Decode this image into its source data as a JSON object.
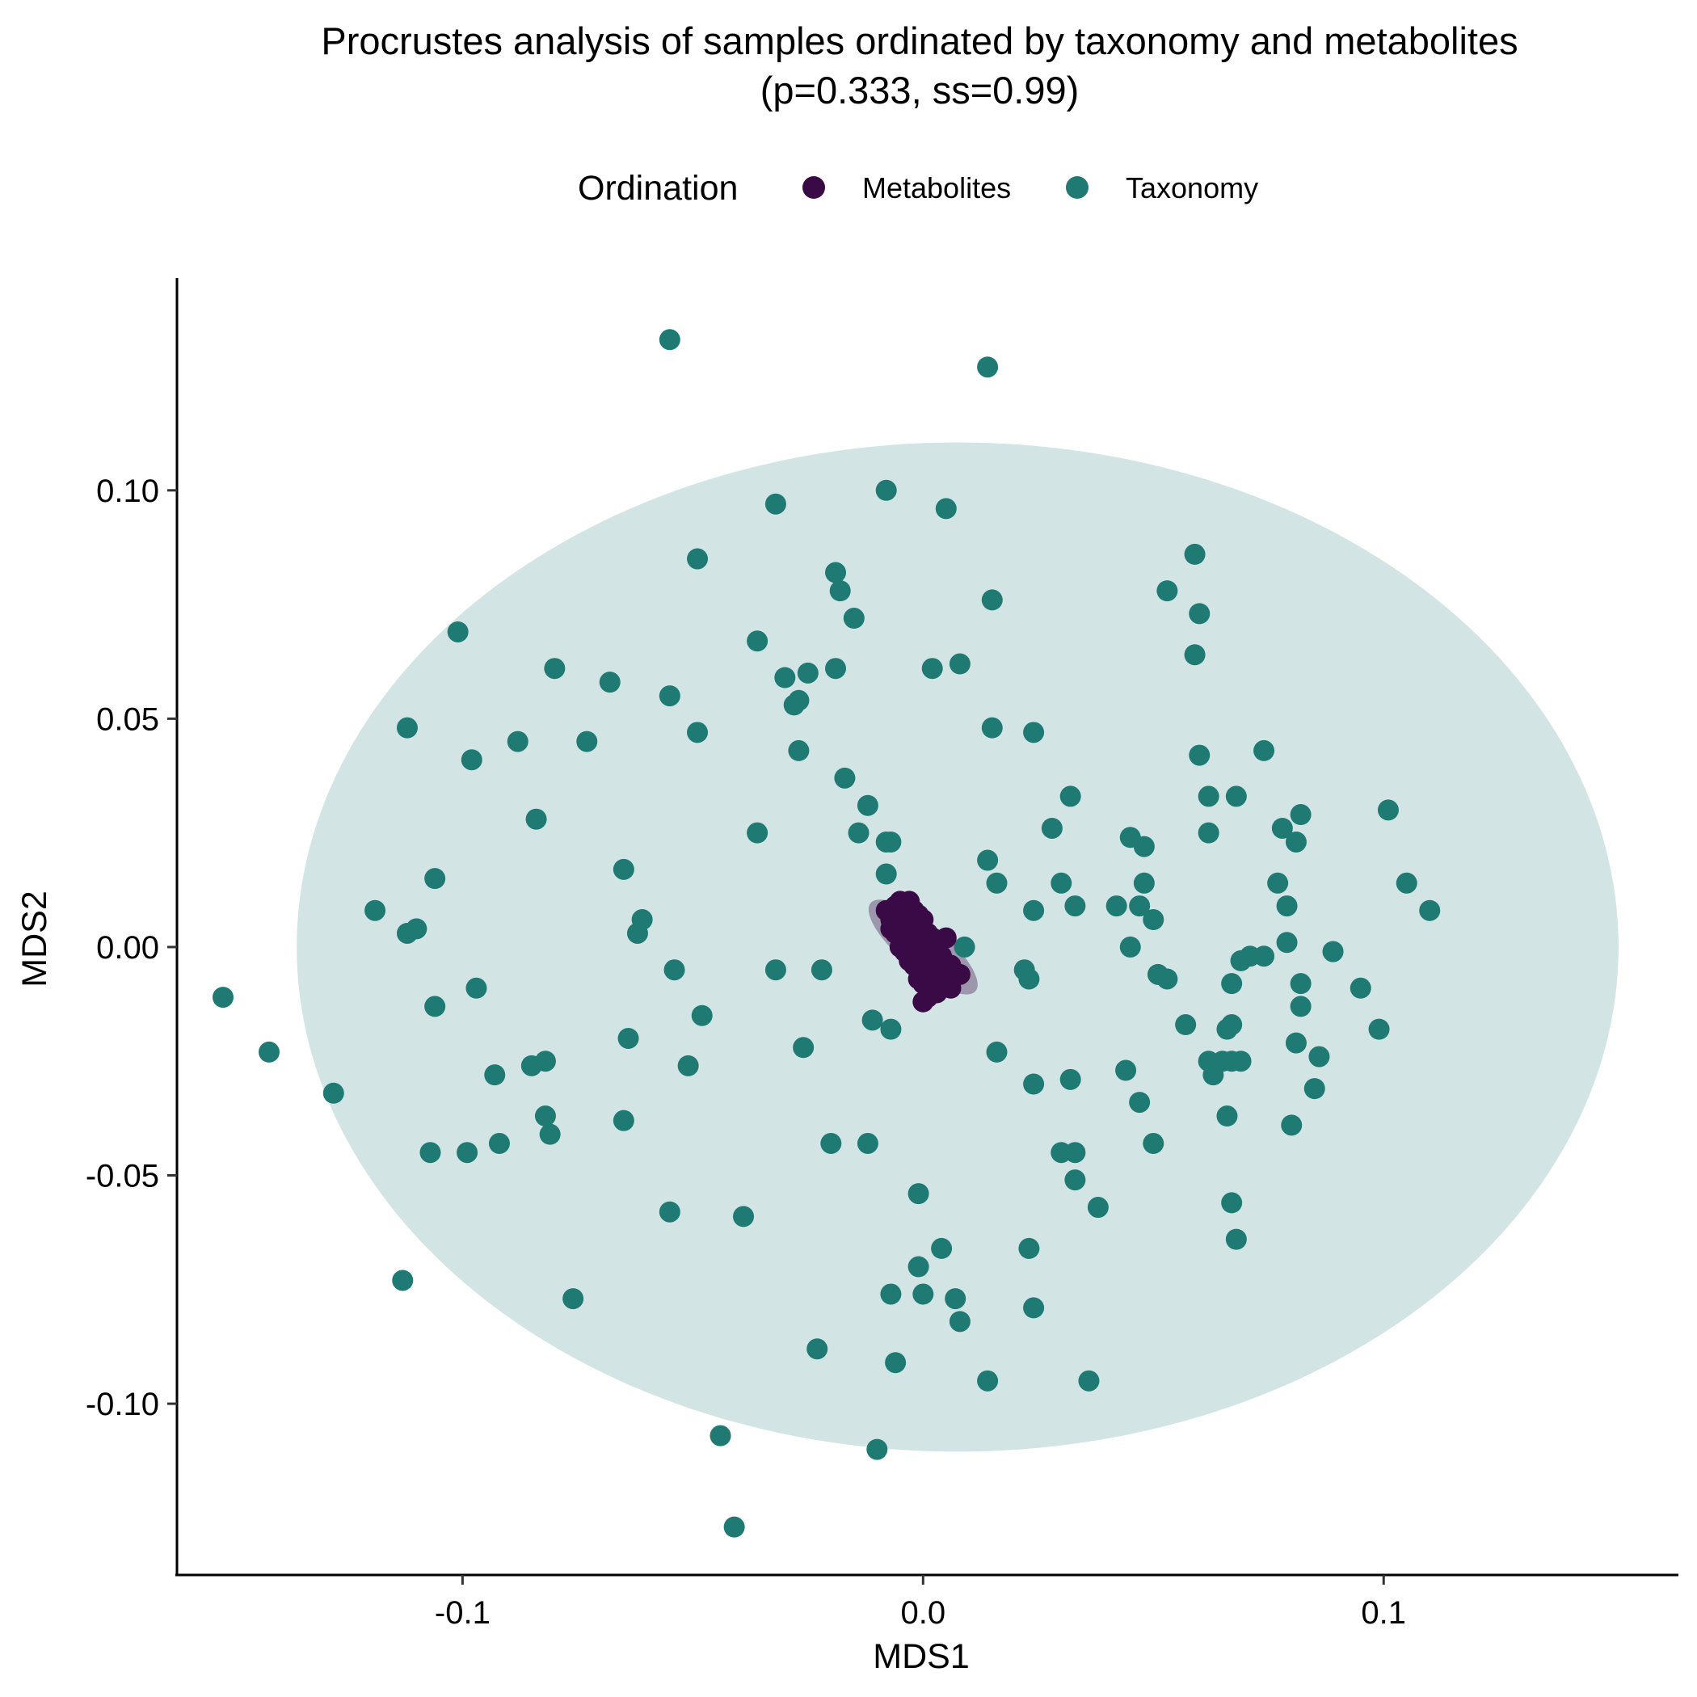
{
  "chart_data": {
    "type": "scatter",
    "title": "Procrustes analysis of samples ordinated by taxonomy and metabolites",
    "subtitle": "(p=0.333, ss=0.99)",
    "xlabel": "MDS1",
    "ylabel": "MDS2",
    "xlim": [
      -0.162,
      0.164
    ],
    "ylim": [
      -0.1375,
      0.1465
    ],
    "x_ticks": [
      -0.1,
      0.0,
      0.1
    ],
    "x_tick_labels": [
      "-0.1",
      "0.0",
      "0.1"
    ],
    "y_ticks": [
      0.1,
      0.05,
      0.0,
      -0.05,
      -0.1
    ],
    "y_tick_labels": [
      "0.10",
      "0.05",
      "0.00",
      "-0.05",
      "-0.10"
    ],
    "grid": false,
    "legend": {
      "title": "Ordination",
      "position": "top",
      "entries": [
        {
          "label": "Metabolites",
          "color": "#3A0A46"
        },
        {
          "label": "Taxonomy",
          "color": "#1F7A74"
        }
      ]
    },
    "ellipses": [
      {
        "series": "Taxonomy",
        "center": [
          0.0075,
          0.0
        ],
        "radius_x": 0.1435,
        "radius_y": 0.1105,
        "color": "#1F7A74",
        "opacity": 0.2
      },
      {
        "series": "Metabolites",
        "center": [
          0.0,
          0.0
        ],
        "radius_x": 0.005,
        "radius_y": 0.015,
        "rotation": -50,
        "color": "#3A0A46",
        "opacity": 0.35
      }
    ],
    "series": [
      {
        "name": "Taxonomy",
        "color": "#1F7A74",
        "points": [
          [
            -0.055,
            0.133
          ],
          [
            0.014,
            0.127
          ],
          [
            -0.032,
            0.097
          ],
          [
            -0.008,
            0.1
          ],
          [
            0.005,
            0.096
          ],
          [
            -0.049,
            0.085
          ],
          [
            -0.019,
            0.082
          ],
          [
            -0.018,
            0.078
          ],
          [
            0.015,
            0.076
          ],
          [
            -0.015,
            0.072
          ],
          [
            -0.101,
            0.069
          ],
          [
            -0.036,
            0.067
          ],
          [
            -0.08,
            0.061
          ],
          [
            -0.03,
            0.059
          ],
          [
            -0.025,
            0.06
          ],
          [
            -0.019,
            0.061
          ],
          [
            0.002,
            0.061
          ],
          [
            0.008,
            0.062
          ],
          [
            -0.068,
            0.058
          ],
          [
            -0.055,
            0.055
          ],
          [
            -0.028,
            0.053
          ],
          [
            -0.027,
            0.054
          ],
          [
            -0.112,
            0.048
          ],
          [
            -0.049,
            0.047
          ],
          [
            0.015,
            0.048
          ],
          [
            0.024,
            0.047
          ],
          [
            -0.088,
            0.045
          ],
          [
            -0.073,
            0.045
          ],
          [
            -0.027,
            0.043
          ],
          [
            -0.098,
            0.041
          ],
          [
            -0.017,
            0.037
          ],
          [
            -0.012,
            0.031
          ],
          [
            -0.084,
            0.028
          ],
          [
            -0.036,
            0.025
          ],
          [
            -0.014,
            0.025
          ],
          [
            -0.008,
            0.023
          ],
          [
            -0.007,
            0.023
          ],
          [
            0.014,
            0.019
          ],
          [
            -0.065,
            0.017
          ],
          [
            -0.106,
            0.015
          ],
          [
            -0.008,
            0.016
          ],
          [
            0.016,
            0.014
          ],
          [
            -0.119,
            0.008
          ],
          [
            -0.061,
            0.006
          ],
          [
            -0.112,
            0.003
          ],
          [
            -0.11,
            0.004
          ],
          [
            -0.062,
            0.003
          ],
          [
            0.024,
            0.008
          ],
          [
            0.009,
            0.0
          ],
          [
            -0.032,
            -0.005
          ],
          [
            -0.054,
            -0.005
          ],
          [
            -0.022,
            -0.005
          ],
          [
            -0.106,
            -0.013
          ],
          [
            -0.097,
            -0.009
          ],
          [
            -0.048,
            -0.015
          ],
          [
            -0.011,
            -0.016
          ],
          [
            -0.007,
            -0.018
          ],
          [
            -0.064,
            -0.02
          ],
          [
            -0.026,
            -0.022
          ],
          [
            -0.093,
            -0.028
          ],
          [
            -0.085,
            -0.026
          ],
          [
            -0.082,
            -0.025
          ],
          [
            -0.051,
            -0.026
          ],
          [
            -0.082,
            -0.037
          ],
          [
            -0.081,
            -0.041
          ],
          [
            -0.065,
            -0.038
          ],
          [
            -0.107,
            -0.045
          ],
          [
            -0.099,
            -0.045
          ],
          [
            -0.092,
            -0.043
          ],
          [
            -0.02,
            -0.043
          ],
          [
            -0.012,
            -0.043
          ],
          [
            -0.055,
            -0.058
          ],
          [
            -0.039,
            -0.059
          ],
          [
            -0.001,
            -0.054
          ],
          [
            -0.113,
            -0.073
          ],
          [
            -0.076,
            -0.077
          ],
          [
            0.004,
            -0.066
          ],
          [
            -0.001,
            -0.07
          ],
          [
            -0.007,
            -0.076
          ],
          [
            0.0,
            -0.076
          ],
          [
            0.007,
            -0.077
          ],
          [
            0.008,
            -0.082
          ],
          [
            -0.023,
            -0.088
          ],
          [
            -0.006,
            -0.091
          ],
          [
            0.014,
            -0.095
          ],
          [
            -0.044,
            -0.107
          ],
          [
            -0.01,
            -0.11
          ],
          [
            -0.041,
            -0.127
          ],
          [
            0.016,
            -0.023
          ],
          [
            0.022,
            -0.005
          ],
          [
            0.023,
            -0.007
          ],
          [
            0.024,
            -0.03
          ],
          [
            0.023,
            -0.066
          ],
          [
            0.024,
            -0.079
          ],
          [
            0.028,
            0.026
          ],
          [
            0.03,
            0.014
          ],
          [
            0.032,
            0.033
          ],
          [
            0.033,
            0.009
          ],
          [
            0.032,
            -0.029
          ],
          [
            0.03,
            -0.045
          ],
          [
            0.033,
            -0.045
          ],
          [
            0.033,
            -0.051
          ],
          [
            0.036,
            -0.095
          ],
          [
            0.038,
            -0.057
          ],
          [
            0.042,
            0.009
          ],
          [
            0.045,
            0.024
          ],
          [
            0.048,
            0.022
          ],
          [
            0.048,
            0.014
          ],
          [
            0.047,
            0.009
          ],
          [
            0.05,
            0.006
          ],
          [
            0.045,
            0.0
          ],
          [
            0.051,
            -0.006
          ],
          [
            0.053,
            -0.007
          ],
          [
            0.044,
            -0.027
          ],
          [
            0.047,
            -0.034
          ],
          [
            0.05,
            -0.043
          ],
          [
            0.057,
            -0.017
          ],
          [
            0.053,
            0.078
          ],
          [
            0.059,
            0.086
          ],
          [
            0.06,
            0.073
          ],
          [
            0.059,
            0.064
          ],
          [
            0.06,
            0.042
          ],
          [
            0.062,
            0.033
          ],
          [
            0.062,
            0.025
          ],
          [
            0.068,
            0.033
          ],
          [
            0.066,
            -0.037
          ],
          [
            0.067,
            -0.017
          ],
          [
            0.067,
            -0.008
          ],
          [
            0.069,
            -0.003
          ],
          [
            0.071,
            -0.002
          ],
          [
            0.074,
            -0.002
          ],
          [
            0.074,
            0.043
          ],
          [
            0.078,
            0.026
          ],
          [
            0.082,
            0.029
          ],
          [
            0.081,
            0.023
          ],
          [
            0.077,
            0.014
          ],
          [
            0.079,
            0.009
          ],
          [
            0.079,
            0.001
          ],
          [
            0.082,
            -0.008
          ],
          [
            0.082,
            -0.013
          ],
          [
            0.081,
            -0.021
          ],
          [
            0.066,
            -0.018
          ],
          [
            0.065,
            -0.025
          ],
          [
            0.062,
            -0.025
          ],
          [
            0.067,
            -0.025
          ],
          [
            0.069,
            -0.025
          ],
          [
            0.086,
            -0.024
          ],
          [
            0.085,
            -0.031
          ],
          [
            0.08,
            -0.039
          ],
          [
            0.067,
            -0.056
          ],
          [
            0.068,
            -0.064
          ],
          [
            0.089,
            -0.001
          ],
          [
            0.095,
            -0.009
          ],
          [
            0.099,
            -0.018
          ],
          [
            0.101,
            0.03
          ],
          [
            0.105,
            0.014
          ],
          [
            0.11,
            0.008
          ],
          [
            -0.152,
            -0.011
          ],
          [
            -0.142,
            -0.023
          ],
          [
            -0.128,
            -0.032
          ],
          [
            0.063,
            -0.028
          ],
          [
            0.089,
            -0.001
          ]
        ]
      },
      {
        "name": "Metabolites",
        "color": "#3A0A46",
        "points": [
          [
            -0.008,
            0.008
          ],
          [
            -0.007,
            0.006
          ],
          [
            -0.006,
            0.009
          ],
          [
            -0.005,
            0.01
          ],
          [
            -0.004,
            0.009
          ],
          [
            -0.003,
            0.01
          ],
          [
            -0.002,
            0.008
          ],
          [
            -0.001,
            0.007
          ],
          [
            0.0,
            0.006
          ],
          [
            -0.007,
            0.004
          ],
          [
            -0.006,
            0.003
          ],
          [
            -0.005,
            0.005
          ],
          [
            -0.004,
            0.004
          ],
          [
            -0.003,
            0.005
          ],
          [
            -0.002,
            0.003
          ],
          [
            -0.001,
            0.004
          ],
          [
            0.0,
            0.002
          ],
          [
            0.001,
            0.003
          ],
          [
            0.002,
            0.002
          ],
          [
            0.005,
            0.002
          ],
          [
            -0.005,
            0.0
          ],
          [
            -0.004,
            -0.001
          ],
          [
            -0.003,
            0.001
          ],
          [
            -0.002,
            -0.001
          ],
          [
            -0.001,
            0.0
          ],
          [
            0.0,
            -0.001
          ],
          [
            0.001,
            -0.001
          ],
          [
            0.002,
            0.0
          ],
          [
            0.003,
            -0.002
          ],
          [
            0.004,
            -0.002
          ],
          [
            -0.003,
            -0.003
          ],
          [
            -0.002,
            -0.004
          ],
          [
            -0.001,
            -0.003
          ],
          [
            0.0,
            -0.004
          ],
          [
            0.001,
            -0.005
          ],
          [
            0.002,
            -0.004
          ],
          [
            0.003,
            -0.005
          ],
          [
            0.004,
            -0.006
          ],
          [
            0.005,
            -0.005
          ],
          [
            0.006,
            -0.004
          ],
          [
            0.007,
            -0.006
          ],
          [
            0.008,
            -0.006
          ],
          [
            -0.001,
            -0.007
          ],
          [
            0.0,
            -0.008
          ],
          [
            0.001,
            -0.009
          ],
          [
            0.002,
            -0.008
          ],
          [
            0.003,
            -0.009
          ],
          [
            0.005,
            -0.008
          ],
          [
            0.006,
            -0.009
          ],
          [
            0.001,
            -0.011
          ],
          [
            0.0,
            -0.012
          ],
          [
            0.003,
            -0.01
          ]
        ]
      }
    ]
  }
}
